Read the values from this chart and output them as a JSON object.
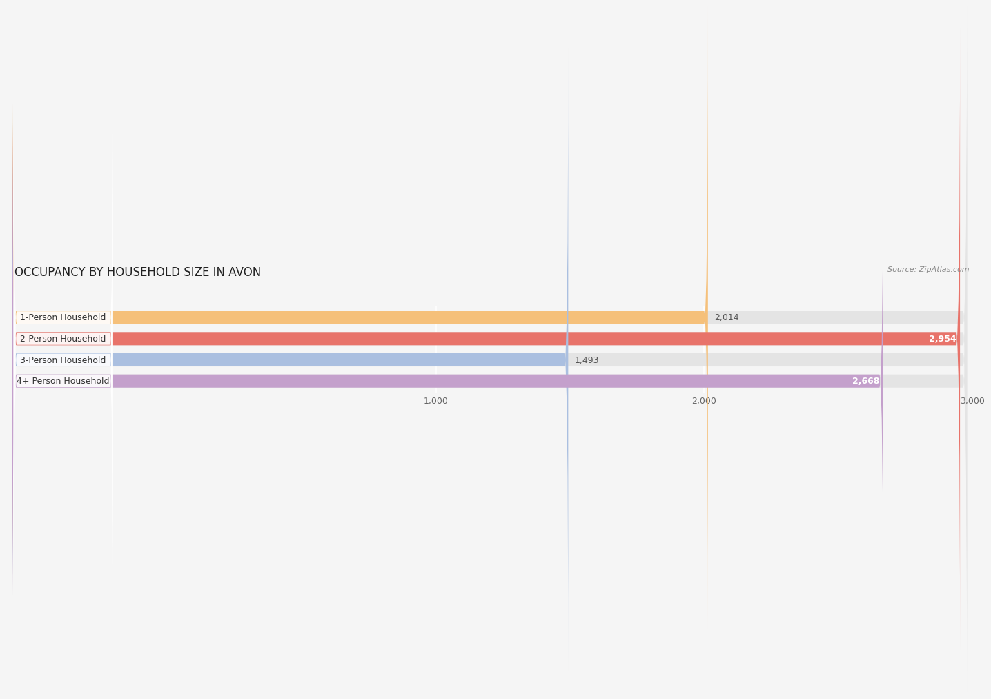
{
  "title": "OCCUPANCY BY HOUSEHOLD SIZE IN AVON",
  "source": "Source: ZipAtlas.com",
  "categories": [
    "1-Person Household",
    "2-Person Household",
    "3-Person Household",
    "4+ Person Household"
  ],
  "values": [
    2014,
    2954,
    1493,
    2668
  ],
  "bar_colors": [
    "#f5c07a",
    "#e8736a",
    "#aabfe0",
    "#c4a0cc"
  ],
  "label_bg_colors": [
    "#f5c07a",
    "#e8736a",
    "#aabfe0",
    "#c4a0cc"
  ],
  "xlim_data": [
    0,
    3000
  ],
  "xticks": [
    1000,
    2000,
    3000
  ],
  "background_color": "#f5f5f5",
  "bar_bg_color": "#e4e4e4",
  "title_fontsize": 12,
  "source_fontsize": 8,
  "label_fontsize": 9,
  "value_fontsize": 9,
  "tick_fontsize": 9
}
